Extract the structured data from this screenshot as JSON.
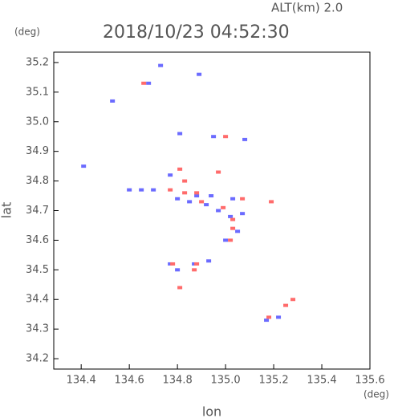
{
  "chart_data": {
    "type": "scatter",
    "header": "ALT(km) 2.0",
    "title": "2018/10/23 04:52:30",
    "y_unit": "(deg)",
    "x_unit": "(deg)",
    "x_label": "lon",
    "y_label": "lat",
    "xlim": [
      134.286,
      135.6
    ],
    "ylim": [
      34.165,
      35.235
    ],
    "xticks": [
      134.4,
      134.6,
      134.8,
      {
        "value": 135,
        "label": "135.0"
      },
      135.2,
      135.4,
      135.6
    ],
    "yticks": [
      34.2,
      34.3,
      34.4,
      34.5,
      34.6,
      34.7,
      34.8,
      34.9,
      {
        "value": 35,
        "label": "35.0"
      },
      35.1,
      35.2
    ],
    "series": [
      {
        "color": "#6b6bff",
        "x": [
          134.73,
          134.68,
          134.89,
          134.81,
          134.95,
          135.08,
          134.41,
          134.6,
          134.65,
          134.7,
          134.77,
          134.8,
          134.85,
          134.88,
          134.92,
          134.97,
          135.02,
          135.07,
          135.05,
          135.0,
          134.77,
          134.8,
          134.87,
          134.93,
          135.22,
          135.17,
          134.53,
          134.94,
          135.03
        ],
        "y": [
          35.19,
          35.13,
          35.16,
          34.96,
          34.95,
          34.94,
          34.85,
          34.77,
          34.77,
          34.77,
          34.82,
          34.74,
          34.73,
          34.75,
          34.72,
          34.7,
          34.68,
          34.69,
          34.63,
          34.6,
          34.52,
          34.5,
          34.52,
          34.53,
          34.34,
          34.33,
          35.07,
          34.75,
          34.74
        ]
      },
      {
        "color": "#ff6b6b",
        "x": [
          134.66,
          135.0,
          134.97,
          134.81,
          134.77,
          134.83,
          134.88,
          134.9,
          134.99,
          135.03,
          135.02,
          135.07,
          135.19,
          134.88,
          134.87,
          134.81,
          135.18,
          135.25,
          135.28,
          135.03,
          134.78,
          134.83
        ],
        "y": [
          35.13,
          34.95,
          34.83,
          34.84,
          34.77,
          34.76,
          34.76,
          34.73,
          34.71,
          34.64,
          34.6,
          34.74,
          34.73,
          34.52,
          34.5,
          34.44,
          34.34,
          34.38,
          34.4,
          34.67,
          34.52,
          34.8
        ]
      }
    ]
  }
}
